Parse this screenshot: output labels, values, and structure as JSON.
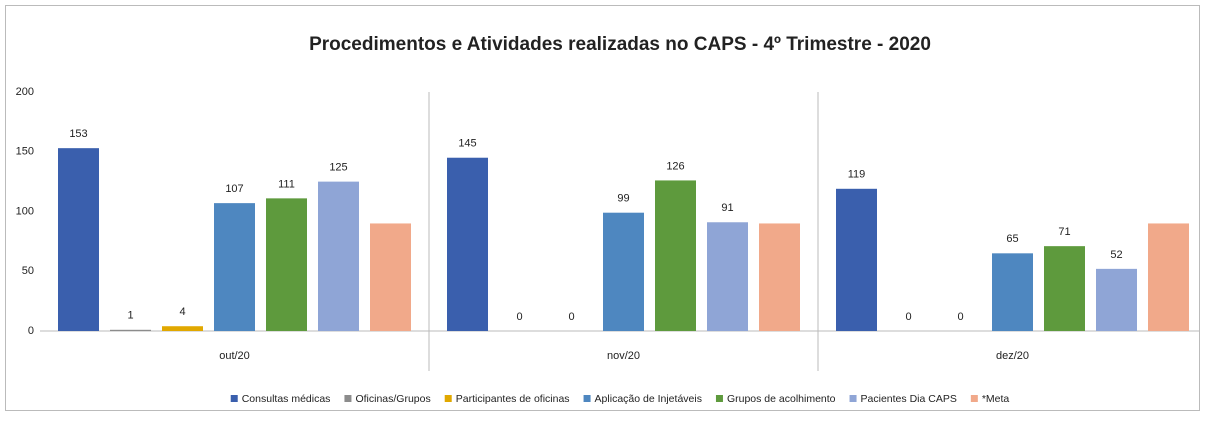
{
  "chart_data": {
    "type": "bar",
    "title": "Procedimentos e Atividades realizadas no CAPS - 4º Trimestre - 2020",
    "categories": [
      "out/20",
      "nov/20",
      "dez/20"
    ],
    "series": [
      {
        "name": "Consultas médicas",
        "color": "#3a5fad",
        "values": [
          153,
          145,
          119
        ]
      },
      {
        "name": "Oficinas/Grupos",
        "color": "#8c8c8c",
        "values": [
          1,
          0,
          0
        ]
      },
      {
        "name": "Participantes de oficinas",
        "color": "#e1a800",
        "values": [
          4,
          0,
          0
        ]
      },
      {
        "name": "Aplicação de Injetáveis",
        "color": "#4e87c0",
        "values": [
          107,
          99,
          65
        ]
      },
      {
        "name": "Grupos de acolhimento",
        "color": "#5e9a3d",
        "values": [
          111,
          126,
          71
        ]
      },
      {
        "name": "Pacientes Dia CAPS",
        "color": "#8fa5d6",
        "values": [
          125,
          91,
          52
        ]
      },
      {
        "name": "*Meta",
        "color": "#f1a98a",
        "values": [
          90,
          90,
          90
        ],
        "show_labels": false
      }
    ],
    "ylim": [
      0,
      200
    ],
    "yticks": [
      0,
      50,
      100,
      150,
      200
    ],
    "grid": false,
    "legend": "bottom"
  }
}
